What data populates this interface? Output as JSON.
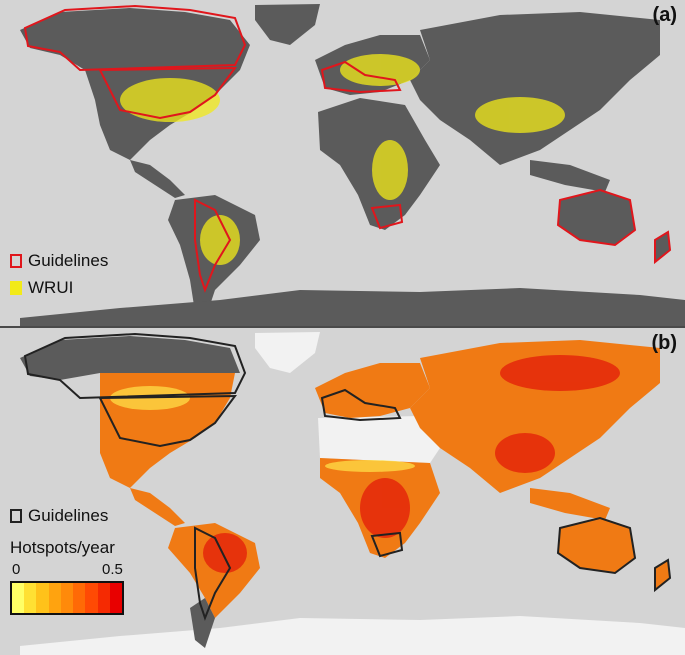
{
  "panel_a": {
    "label": "(a)",
    "legend": [
      {
        "label": "Guidelines",
        "swatch": "red-outline"
      },
      {
        "label": "WRUI",
        "swatch": "yellow-fill"
      }
    ]
  },
  "panel_b": {
    "label": "(b)",
    "legend_guidelines": "Guidelines",
    "colorbar": {
      "title": "Hotspots/year",
      "min": "0",
      "max": "0.5",
      "colors": [
        "#ffff66",
        "#ffe033",
        "#ffc21a",
        "#ffa30f",
        "#ff8a0a",
        "#ff6a06",
        "#ff4a04",
        "#f52a02",
        "#e80000"
      ]
    }
  },
  "colors": {
    "ocean": "#d4d4d4",
    "land": "#5b5b5b",
    "guideline_a": "#e0161c",
    "wrui": "#f2ea18",
    "guideline_b": "#222222",
    "desert": "#f2f2f2"
  }
}
